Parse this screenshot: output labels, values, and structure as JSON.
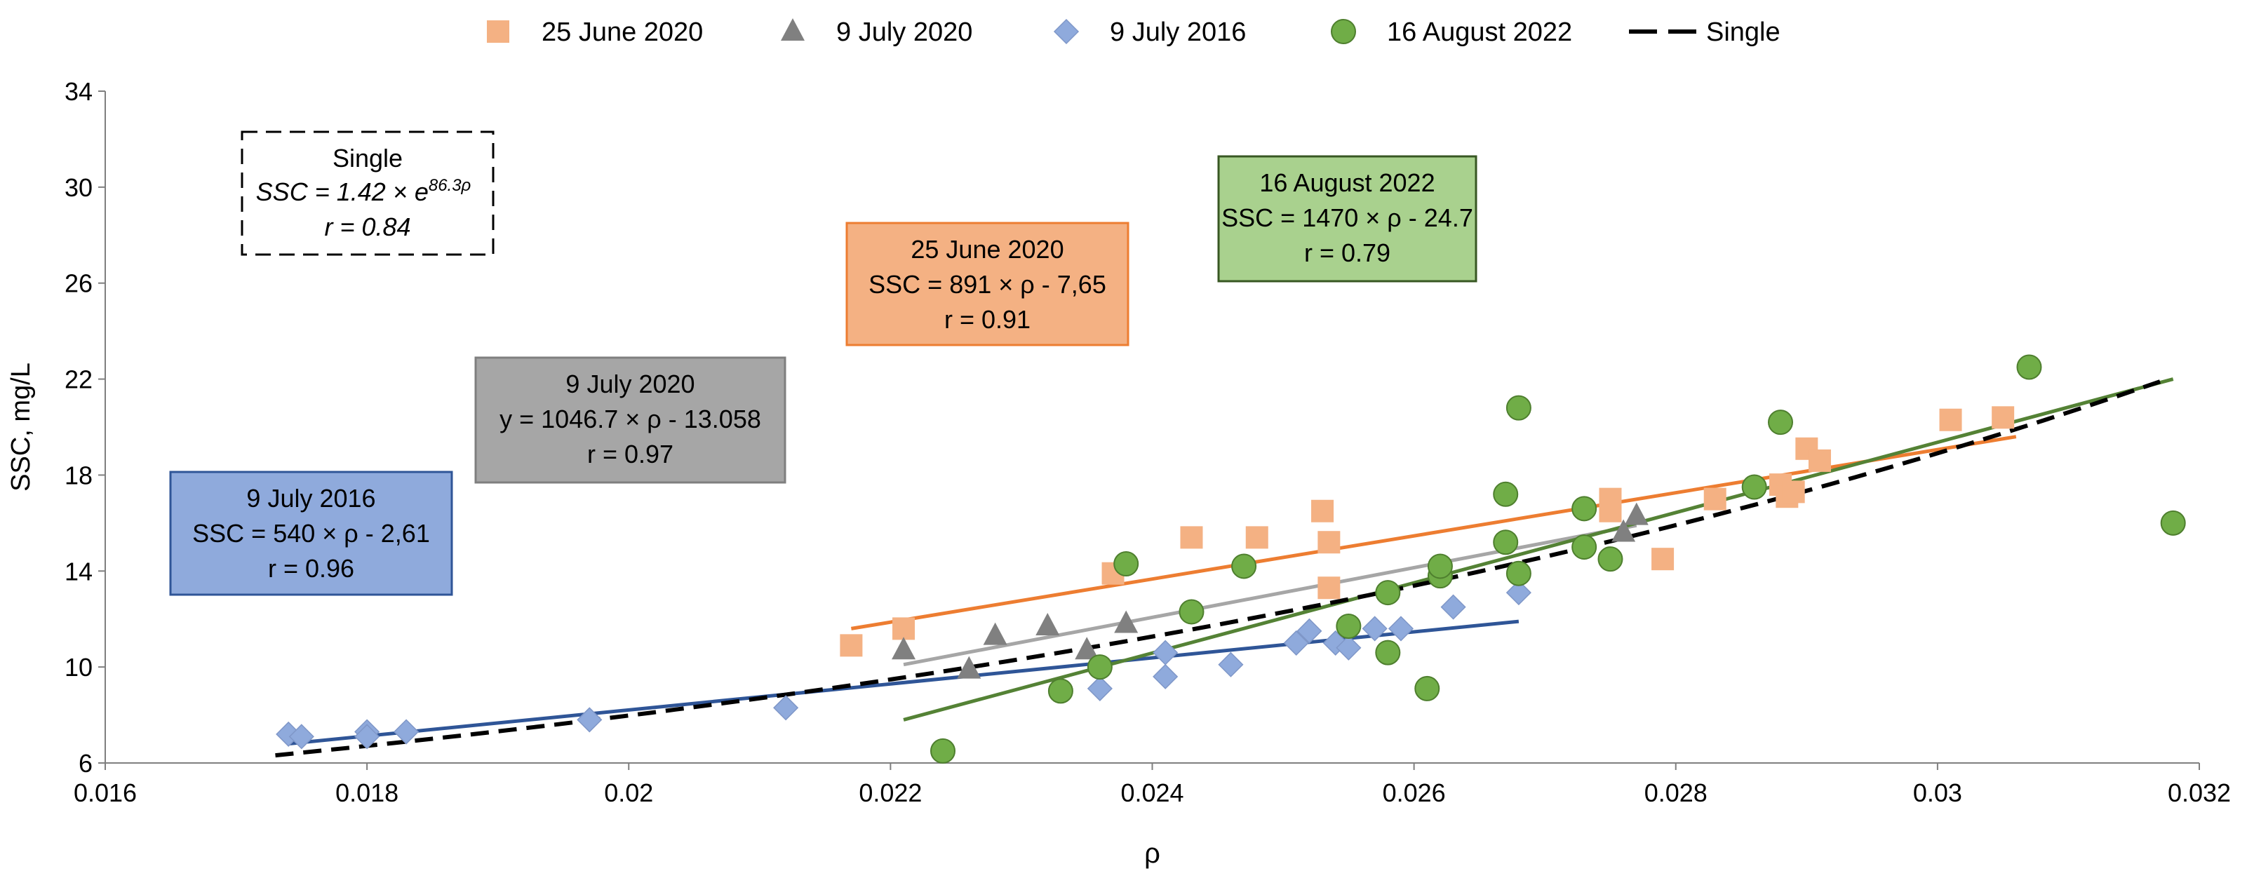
{
  "chart_data": {
    "type": "scatter",
    "xlabel": "ρ",
    "ylabel": "SSC, mg/L",
    "xlim": [
      0.016,
      0.032
    ],
    "ylim": [
      6,
      34
    ],
    "xticks": [
      0.016,
      0.018,
      0.02,
      0.022,
      0.024,
      0.026,
      0.028,
      0.03,
      0.032
    ],
    "xtick_labels": [
      "0.016",
      "0.018",
      "0.02",
      "0.022",
      "0.024",
      "0.026",
      "0.028",
      "0.03",
      "0.032"
    ],
    "yticks": [
      6,
      10,
      14,
      18,
      22,
      26,
      30,
      34
    ],
    "ytick_labels": [
      "6",
      "10",
      "14",
      "18",
      "22",
      "26",
      "30",
      "34"
    ],
    "grid": false,
    "legend_position": "top",
    "colors": {
      "june2020": "#F4B183",
      "june2020_line": "#ED7D31",
      "july2020": "#808080",
      "july2020_line": "#A6A6A6",
      "july2016": "#8FAADC",
      "july2016_line": "#2F5597",
      "aug2022": "#70AD47",
      "aug2022_line": "#548235",
      "single": "#000000"
    },
    "legend": [
      {
        "key": "june2020",
        "label": "25 June 2020",
        "marker": "square"
      },
      {
        "key": "july2020",
        "label": "9 July 2020",
        "marker": "triangle"
      },
      {
        "key": "july2016",
        "label": "9 July 2016",
        "marker": "diamond"
      },
      {
        "key": "aug2022",
        "label": "16 August 2022",
        "marker": "circle"
      },
      {
        "key": "single",
        "label": "Single",
        "marker": "dashed-line"
      }
    ],
    "series": [
      {
        "key": "june2020",
        "name": "25 June 2020",
        "marker": "square",
        "points": [
          [
            0.0217,
            10.9
          ],
          [
            0.0221,
            11.6
          ],
          [
            0.0237,
            13.9
          ],
          [
            0.0243,
            15.4
          ],
          [
            0.0248,
            15.4
          ],
          [
            0.0253,
            16.5
          ],
          [
            0.02535,
            15.2
          ],
          [
            0.02535,
            13.3
          ],
          [
            0.0275,
            17.0
          ],
          [
            0.0275,
            16.5
          ],
          [
            0.0279,
            14.5
          ],
          [
            0.0283,
            17.0
          ],
          [
            0.0288,
            17.6
          ],
          [
            0.02885,
            17.1
          ],
          [
            0.0289,
            17.3
          ],
          [
            0.029,
            19.1
          ],
          [
            0.0291,
            18.6
          ],
          [
            0.0301,
            20.3
          ],
          [
            0.0305,
            20.4
          ]
        ],
        "fit": {
          "type": "linear",
          "x": [
            0.0217,
            0.0306
          ],
          "y": [
            11.6,
            19.6
          ]
        }
      },
      {
        "key": "july2020",
        "name": "9 July 2020",
        "marker": "triangle",
        "points": [
          [
            0.0221,
            10.7
          ],
          [
            0.0226,
            9.9
          ],
          [
            0.0228,
            11.3
          ],
          [
            0.0232,
            11.7
          ],
          [
            0.0235,
            10.7
          ],
          [
            0.0238,
            11.8
          ],
          [
            0.0276,
            15.6
          ],
          [
            0.0277,
            16.3
          ]
        ],
        "fit": {
          "type": "linear",
          "x": [
            0.0221,
            0.0277
          ],
          "y": [
            10.1,
            15.9
          ]
        }
      },
      {
        "key": "july2016",
        "name": "9 July 2016",
        "marker": "diamond",
        "points": [
          [
            0.0174,
            7.2
          ],
          [
            0.0175,
            7.1
          ],
          [
            0.018,
            7.3
          ],
          [
            0.018,
            7.1
          ],
          [
            0.0183,
            7.3
          ],
          [
            0.0197,
            7.8
          ],
          [
            0.0212,
            8.3
          ],
          [
            0.0236,
            9.1
          ],
          [
            0.0241,
            9.6
          ],
          [
            0.0241,
            10.6
          ],
          [
            0.0246,
            10.1
          ],
          [
            0.0251,
            11.0
          ],
          [
            0.0252,
            11.5
          ],
          [
            0.0254,
            11.0
          ],
          [
            0.0255,
            10.8
          ],
          [
            0.0257,
            11.6
          ],
          [
            0.0259,
            11.6
          ],
          [
            0.0263,
            12.5
          ],
          [
            0.0268,
            13.1
          ]
        ],
        "fit": {
          "type": "linear",
          "x": [
            0.0174,
            0.0268
          ],
          "y": [
            6.8,
            11.9
          ]
        }
      },
      {
        "key": "aug2022",
        "name": "16 August 2022",
        "marker": "circle",
        "points": [
          [
            0.0224,
            6.5
          ],
          [
            0.0233,
            9.0
          ],
          [
            0.0236,
            10.0
          ],
          [
            0.0238,
            14.3
          ],
          [
            0.0243,
            12.3
          ],
          [
            0.0247,
            14.2
          ],
          [
            0.0255,
            11.7
          ],
          [
            0.0258,
            13.1
          ],
          [
            0.0258,
            10.6
          ],
          [
            0.0261,
            9.1
          ],
          [
            0.0262,
            13.8
          ],
          [
            0.0262,
            14.2
          ],
          [
            0.0267,
            17.2
          ],
          [
            0.0267,
            15.2
          ],
          [
            0.0268,
            13.9
          ],
          [
            0.0268,
            20.8
          ],
          [
            0.0273,
            16.6
          ],
          [
            0.0273,
            15.0
          ],
          [
            0.0275,
            14.5
          ],
          [
            0.0286,
            17.5
          ],
          [
            0.0288,
            20.2
          ],
          [
            0.0307,
            22.5
          ],
          [
            0.0318,
            16.0
          ]
        ],
        "fit": {
          "type": "linear",
          "x": [
            0.0221,
            0.0318
          ],
          "y": [
            7.8,
            22.0
          ]
        }
      }
    ],
    "single_curve": {
      "name": "Single",
      "a": 1.42,
      "b": 86.3,
      "xrange": [
        0.0173,
        0.0317
      ]
    },
    "annotations": [
      {
        "key": "single",
        "lines": [
          "Single",
          "SSC = 1.42 × e",
          "86.3ρ",
          "r = 0.84"
        ]
      },
      {
        "key": "aug2022",
        "lines": [
          "16 August 2022",
          "SSC = 1470 × ρ  - 24.7",
          "r = 0.79"
        ]
      },
      {
        "key": "june2020",
        "lines": [
          "25 June 2020",
          "SSC  = 891 × ρ - 7,65",
          "r = 0.91"
        ]
      },
      {
        "key": "july2020",
        "lines": [
          "9 July 2020",
          "y = 1046.7 × ρ  - 13.058",
          "r = 0.97"
        ]
      },
      {
        "key": "july2016",
        "lines": [
          "9 July 2016",
          "SSC  = 540 × ρ - 2,61",
          "r = 0.96"
        ]
      }
    ]
  }
}
